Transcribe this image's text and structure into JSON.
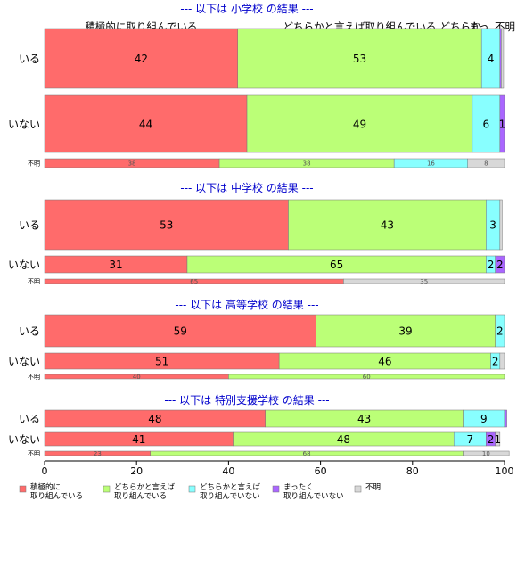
{
  "chart_data": {
    "type": "bar",
    "orientation": "horizontal",
    "stacked": true,
    "xlim": [
      0,
      100
    ],
    "x_ticks": [
      "0",
      "20",
      "40",
      "60",
      "80",
      "100"
    ],
    "grid": false,
    "legend_position": "bottom-left",
    "category_colors": [
      "#ff6b6b",
      "#bbff77",
      "#88ffff",
      "#aa66ff",
      "#d8d8d8"
    ],
    "legend": [
      {
        "line1": "積極的に",
        "line2": "取り組んでいる"
      },
      {
        "line1": "どちらかと言えば",
        "line2": "取り組んでいる"
      },
      {
        "line1": "どちらかと言えば",
        "line2": "取り組んでいない"
      },
      {
        "line1": "まったく",
        "line2": "取り組んでいない"
      },
      {
        "line1": "不明",
        "line2": ""
      }
    ],
    "header_labels": [
      "積極的に取り組んでいる",
      "どちらかと言えば取り組んでいる",
      "どちらか…",
      "まっ…",
      "不明"
    ],
    "panels": [
      {
        "title": "--- 以下は 小学校 の結果 ---",
        "rows": [
          {
            "label": "いる",
            "values": [
              42,
              53,
              4,
              0.3,
              0.5
            ],
            "labels": [
              "42",
              "53",
              "4",
              "",
              ""
            ]
          },
          {
            "label": "いない",
            "values": [
              44,
              49,
              6,
              1,
              0
            ],
            "labels": [
              "44",
              "49",
              "6",
              "1",
              ""
            ]
          },
          {
            "label": "不明",
            "values": [
              38,
              38,
              16,
              0,
              8
            ],
            "labels": [
              "38",
              "38",
              "16",
              "",
              "8"
            ]
          }
        ]
      },
      {
        "title": "--- 以下は 中学校 の結果 ---",
        "rows": [
          {
            "label": "いる",
            "values": [
              53,
              43,
              3,
              0,
              0.5
            ],
            "labels": [
              "53",
              "43",
              "3",
              "",
              ""
            ]
          },
          {
            "label": "いない",
            "values": [
              31,
              65,
              2,
              2,
              0
            ],
            "labels": [
              "31",
              "65",
              "2",
              "2",
              ""
            ]
          },
          {
            "label": "不明",
            "values": [
              65,
              0,
              0,
              0,
              35
            ],
            "labels": [
              "65",
              "",
              "",
              "",
              "35"
            ]
          }
        ]
      },
      {
        "title": "--- 以下は 高等学校 の結果 ---",
        "rows": [
          {
            "label": "いる",
            "values": [
              59,
              39,
              2,
              0,
              0
            ],
            "labels": [
              "59",
              "39",
              "2",
              "",
              ""
            ]
          },
          {
            "label": "いない",
            "values": [
              51,
              46,
              2,
              0,
              1
            ],
            "labels": [
              "51",
              "46",
              "2",
              "",
              ""
            ]
          },
          {
            "label": "不明",
            "values": [
              40,
              60,
              0,
              0,
              0
            ],
            "labels": [
              "40",
              "60",
              "",
              "",
              ""
            ]
          }
        ]
      },
      {
        "title": "--- 以下は 特別支援学校 の結果 ---",
        "rows": [
          {
            "label": "いる",
            "values": [
              48,
              43,
              9,
              0.5,
              0
            ],
            "labels": [
              "48",
              "43",
              "9",
              "",
              ""
            ]
          },
          {
            "label": "いない",
            "values": [
              41,
              48,
              7,
              2,
              1
            ],
            "labels": [
              "41",
              "48",
              "7",
              "2",
              "1"
            ]
          },
          {
            "label": "不明",
            "values": [
              23,
              68,
              0,
              0,
              10
            ],
            "labels": [
              "23",
              "68",
              "",
              "",
              "10"
            ]
          }
        ]
      }
    ]
  }
}
